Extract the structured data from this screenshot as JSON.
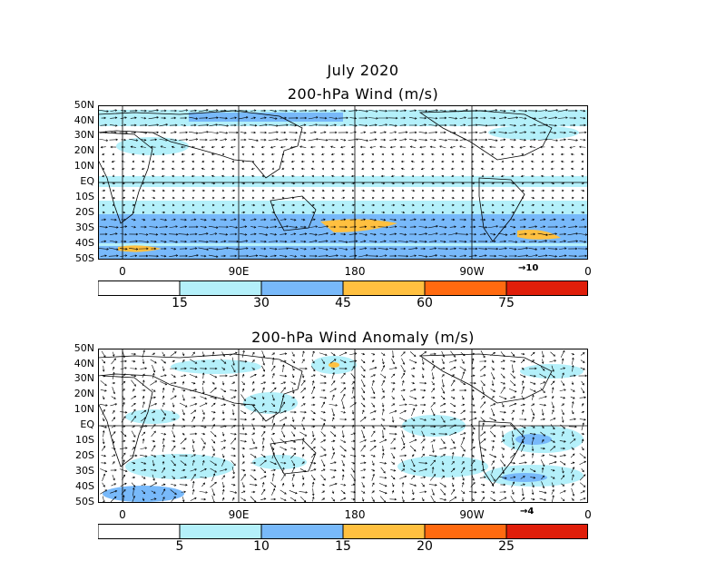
{
  "figure": {
    "title_line1": "July 2020",
    "title_line2": "200-hPa Wind (m/s)",
    "title_anomaly": "200-hPa Wind Anomaly (m/s)"
  },
  "axes": {
    "lat_labels": [
      "50N",
      "40N",
      "30N",
      "20N",
      "10N",
      "EQ",
      "10S",
      "20S",
      "30S",
      "40S",
      "50S"
    ],
    "lon_labels": [
      "0",
      "90E",
      "180",
      "90W",
      "0"
    ]
  },
  "colors": {
    "c0": "#ffffff",
    "c1": "#b4f0fa",
    "c2": "#78b9fa",
    "c3": "#ffc040",
    "c4": "#ff6a10",
    "c5": "#e01e0a"
  },
  "panels": {
    "wind": {
      "colorbar_labels": [
        "15",
        "30",
        "45",
        "60",
        "75"
      ],
      "reference_vector": "10"
    },
    "anomaly": {
      "colorbar_labels": [
        "5",
        "10",
        "15",
        "20",
        "25"
      ],
      "reference_vector": "4"
    }
  }
}
